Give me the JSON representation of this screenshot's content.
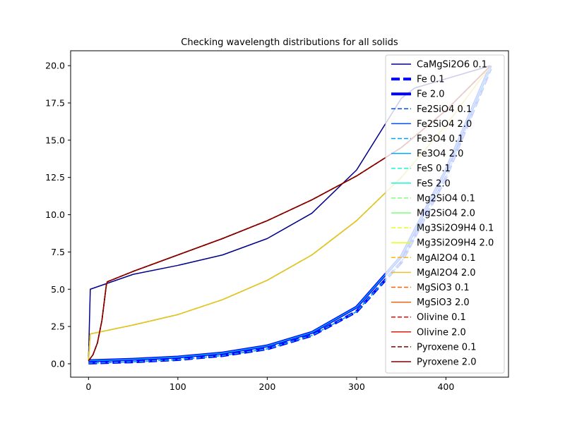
{
  "chart_data": {
    "type": "line",
    "title": "Checking wavelength distributions for all solids",
    "xlabel": "",
    "ylabel": "",
    "xlim": [
      -20,
      470
    ],
    "ylim": [
      -0.9,
      21.0
    ],
    "xticks": [
      0,
      100,
      200,
      300,
      400
    ],
    "yticks": [
      0.0,
      2.5,
      5.0,
      7.5,
      10.0,
      12.5,
      15.0,
      17.5,
      20.0
    ],
    "ytick_labels": [
      "0.0",
      "2.5",
      "5.0",
      "7.5",
      "10.0",
      "12.5",
      "15.0",
      "17.5",
      "20.0"
    ],
    "grid": false,
    "legend_position": "top-right",
    "series": [
      {
        "name": "CaMgSi2O6 0.1",
        "color": "#00008b",
        "style": "solid",
        "width": 1.5,
        "x": [
          0,
          2,
          50,
          100,
          150,
          200,
          250,
          300,
          350,
          365,
          450
        ],
        "y": [
          0.3,
          5.0,
          6.0,
          6.6,
          7.3,
          8.4,
          10.1,
          13.0,
          17.8,
          18.5,
          20.0
        ]
      },
      {
        "name": "Fe 0.1",
        "color": "#0000ff",
        "style": "dashed",
        "width": 4,
        "x": [
          0,
          50,
          100,
          150,
          200,
          250,
          300,
          350,
          400,
          450
        ],
        "y": [
          0.05,
          0.13,
          0.28,
          0.55,
          1.0,
          1.9,
          3.5,
          6.8,
          12.5,
          19.8
        ]
      },
      {
        "name": "Fe 2.0",
        "color": "#0000ff",
        "style": "solid",
        "width": 4,
        "x": [
          0,
          50,
          100,
          150,
          200,
          250,
          300,
          350,
          400,
          450
        ],
        "y": [
          0.2,
          0.3,
          0.45,
          0.72,
          1.2,
          2.1,
          3.8,
          7.2,
          13.0,
          20.0
        ]
      },
      {
        "name": "Fe2SiO4 0.1",
        "color": "#0050ff",
        "style": "dashed",
        "width": 1.5,
        "x": [
          0,
          50,
          100,
          150,
          200,
          250,
          300,
          350,
          400,
          450
        ],
        "y": [
          0.05,
          0.13,
          0.28,
          0.55,
          1.0,
          1.9,
          3.5,
          6.8,
          12.5,
          19.8
        ]
      },
      {
        "name": "Fe2SiO4 2.0",
        "color": "#0050ff",
        "style": "solid",
        "width": 1.5,
        "x": [
          0,
          50,
          100,
          150,
          200,
          250,
          300,
          350,
          400,
          450
        ],
        "y": [
          0.2,
          0.3,
          0.45,
          0.72,
          1.2,
          2.1,
          3.8,
          7.2,
          13.0,
          20.0
        ]
      },
      {
        "name": "Fe3O4 0.1",
        "color": "#00a4ff",
        "style": "dashed",
        "width": 1.5,
        "x": [
          0,
          50,
          100,
          150,
          200,
          250,
          300,
          350,
          400,
          450
        ],
        "y": [
          0.05,
          0.13,
          0.28,
          0.55,
          1.0,
          1.9,
          3.5,
          6.8,
          12.5,
          19.8
        ]
      },
      {
        "name": "Fe3O4 2.0",
        "color": "#00a4ff",
        "style": "solid",
        "width": 1.5,
        "x": [
          0,
          50,
          100,
          150,
          200,
          250,
          300,
          350,
          400,
          450
        ],
        "y": [
          0.2,
          0.3,
          0.45,
          0.72,
          1.2,
          2.1,
          3.8,
          7.2,
          13.0,
          20.0
        ]
      },
      {
        "name": "FeS 0.1",
        "color": "#13fcd5",
        "style": "dashed",
        "width": 1.5,
        "x": [
          0,
          2,
          50,
          100,
          150,
          200,
          250,
          300,
          350,
          400,
          450
        ],
        "y": [
          0.2,
          2.0,
          2.6,
          3.3,
          4.3,
          5.6,
          7.3,
          9.6,
          12.5,
          16.0,
          20.0
        ]
      },
      {
        "name": "FeS 2.0",
        "color": "#13fcd5",
        "style": "solid",
        "width": 1.5,
        "x": [
          0,
          2,
          50,
          100,
          150,
          200,
          250,
          300,
          350,
          400,
          450
        ],
        "y": [
          0.2,
          2.0,
          2.6,
          3.3,
          4.3,
          5.6,
          7.3,
          9.6,
          12.5,
          16.0,
          20.0
        ]
      },
      {
        "name": "Mg2SiO4 0.1",
        "color": "#7dff7a",
        "style": "dashed",
        "width": 1.5,
        "x": [
          0,
          2,
          50,
          100,
          150,
          200,
          250,
          300,
          350,
          400,
          450
        ],
        "y": [
          0.2,
          2.0,
          2.6,
          3.3,
          4.3,
          5.6,
          7.3,
          9.6,
          12.5,
          16.0,
          20.0
        ]
      },
      {
        "name": "Mg2SiO4 2.0",
        "color": "#7dff7a",
        "style": "solid",
        "width": 1.5,
        "x": [
          0,
          2,
          50,
          100,
          150,
          200,
          250,
          300,
          350,
          400,
          450
        ],
        "y": [
          0.2,
          2.0,
          2.6,
          3.3,
          4.3,
          5.6,
          7.3,
          9.6,
          12.5,
          16.0,
          20.0
        ]
      },
      {
        "name": "Mg3Si2O9H4 0.1",
        "color": "#e5ff13",
        "style": "dashed",
        "width": 1.5,
        "x": [
          0,
          2,
          50,
          100,
          150,
          200,
          250,
          300,
          350,
          400,
          450
        ],
        "y": [
          0.2,
          2.0,
          2.6,
          3.3,
          4.3,
          5.6,
          7.3,
          9.6,
          12.5,
          16.0,
          20.0
        ]
      },
      {
        "name": "Mg3Si2O9H4 2.0",
        "color": "#e5ff13",
        "style": "solid",
        "width": 1.5,
        "x": [
          0,
          2,
          50,
          100,
          150,
          200,
          250,
          300,
          350,
          400,
          450
        ],
        "y": [
          0.2,
          2.0,
          2.6,
          3.3,
          4.3,
          5.6,
          7.3,
          9.6,
          12.5,
          16.0,
          20.0
        ]
      },
      {
        "name": "MgAl2O4 0.1",
        "color": "#ffb900",
        "style": "dashed",
        "width": 1.5,
        "x": [
          0,
          2,
          50,
          100,
          150,
          200,
          250,
          300,
          350,
          400,
          450
        ],
        "y": [
          0.2,
          2.0,
          2.6,
          3.3,
          4.3,
          5.6,
          7.3,
          9.6,
          12.5,
          16.0,
          20.0
        ]
      },
      {
        "name": "MgAl2O4 2.0",
        "color": "#e8c031",
        "style": "solid",
        "width": 1.5,
        "x": [
          0,
          2,
          50,
          100,
          150,
          200,
          250,
          300,
          350,
          400,
          450
        ],
        "y": [
          0.2,
          2.0,
          2.6,
          3.3,
          4.3,
          5.6,
          7.3,
          9.6,
          12.5,
          16.0,
          20.0
        ]
      },
      {
        "name": "MgSiO3 0.1",
        "color": "#ff6200",
        "style": "dashed",
        "width": 1.5,
        "x": [
          0,
          5,
          10,
          15,
          20,
          21,
          50,
          100,
          150,
          200,
          250,
          300,
          350,
          400,
          450
        ],
        "y": [
          0.2,
          0.6,
          1.4,
          2.9,
          5.3,
          5.5,
          6.2,
          7.3,
          8.4,
          9.6,
          11.0,
          12.6,
          14.5,
          17.0,
          20.0
        ]
      },
      {
        "name": "MgSiO3 2.0",
        "color": "#e86410",
        "style": "solid",
        "width": 1.5,
        "x": [
          0,
          5,
          10,
          15,
          20,
          21,
          50,
          100,
          150,
          200,
          250,
          300,
          350,
          400,
          450
        ],
        "y": [
          0.2,
          0.6,
          1.4,
          2.9,
          5.3,
          5.5,
          6.2,
          7.3,
          8.4,
          9.6,
          11.0,
          12.6,
          14.5,
          17.0,
          20.0
        ]
      },
      {
        "name": "Olivine 0.1",
        "color": "#f10800",
        "style": "dashed",
        "width": 1.5,
        "x": [
          0,
          5,
          10,
          15,
          20,
          21,
          50,
          100,
          150,
          200,
          250,
          300,
          350,
          400,
          450
        ],
        "y": [
          0.2,
          0.6,
          1.4,
          2.9,
          5.3,
          5.5,
          6.2,
          7.3,
          8.4,
          9.6,
          11.0,
          12.6,
          14.5,
          17.0,
          20.0
        ]
      },
      {
        "name": "Olivine 2.0",
        "color": "#dd1c08",
        "style": "solid",
        "width": 1.5,
        "x": [
          0,
          5,
          10,
          15,
          20,
          21,
          50,
          100,
          150,
          200,
          250,
          300,
          350,
          400,
          450
        ],
        "y": [
          0.2,
          0.6,
          1.4,
          2.9,
          5.3,
          5.5,
          6.2,
          7.3,
          8.4,
          9.6,
          11.0,
          12.6,
          14.5,
          17.0,
          20.0
        ]
      },
      {
        "name": "Pyroxene 0.1",
        "color": "#800000",
        "style": "dashed",
        "width": 1.5,
        "x": [
          0,
          5,
          10,
          15,
          20,
          21,
          50,
          100,
          150,
          200,
          250,
          300,
          350,
          400,
          450
        ],
        "y": [
          0.2,
          0.6,
          1.4,
          2.9,
          5.3,
          5.5,
          6.2,
          7.3,
          8.4,
          9.6,
          11.0,
          12.6,
          14.5,
          17.0,
          20.0
        ]
      },
      {
        "name": "Pyroxene 2.0",
        "color": "#800000",
        "style": "solid",
        "width": 1.5,
        "x": [
          0,
          5,
          10,
          15,
          20,
          21,
          50,
          100,
          150,
          200,
          250,
          300,
          350,
          400,
          450
        ],
        "y": [
          0.2,
          0.6,
          1.4,
          2.9,
          5.3,
          5.5,
          6.2,
          7.3,
          8.4,
          9.6,
          11.0,
          12.6,
          14.5,
          17.0,
          20.0
        ]
      }
    ]
  }
}
